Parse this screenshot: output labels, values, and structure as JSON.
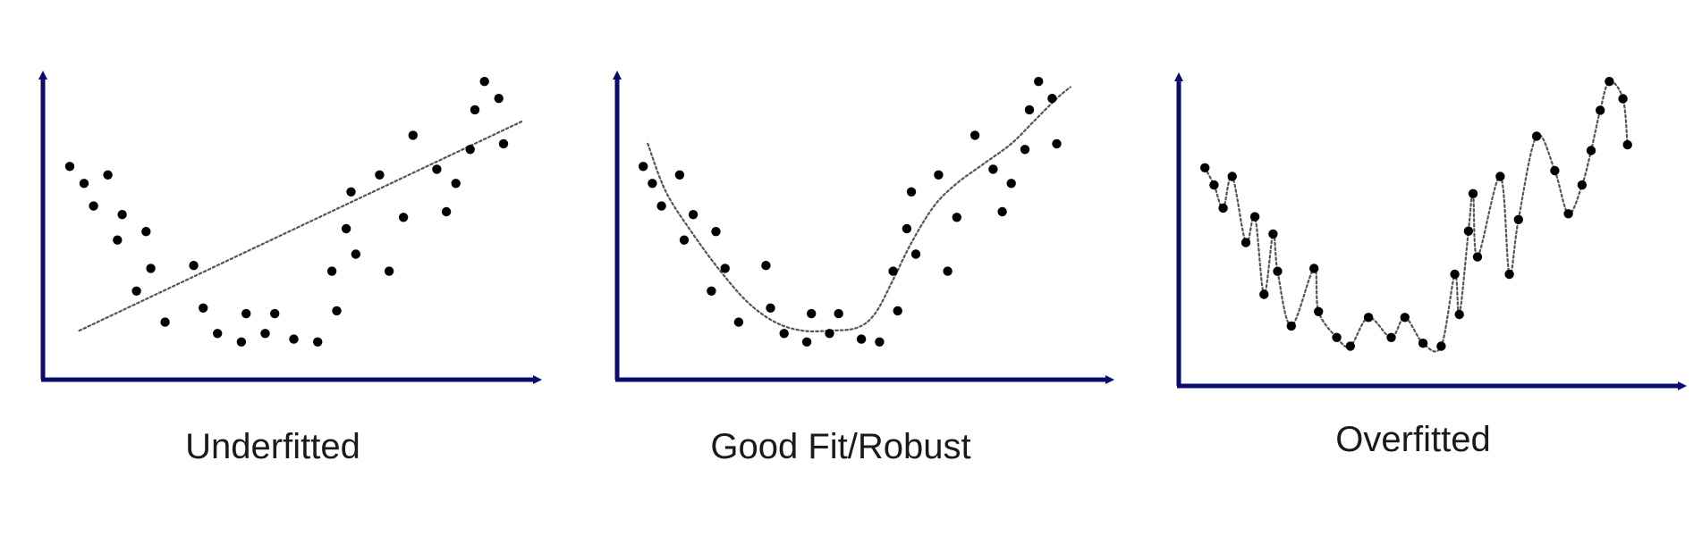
{
  "accent_colors": {
    "axis": "#0b0b6e",
    "points": "#000000",
    "fit_curve": "#555555"
  },
  "panels": [
    {
      "id": "underfitted",
      "caption": "Underfitted",
      "fit": "linear",
      "points": [
        [
          0.03,
          0.69
        ],
        [
          0.06,
          0.63
        ],
        [
          0.08,
          0.55
        ],
        [
          0.11,
          0.66
        ],
        [
          0.13,
          0.43
        ],
        [
          0.14,
          0.52
        ],
        [
          0.17,
          0.25
        ],
        [
          0.19,
          0.46
        ],
        [
          0.2,
          0.33
        ],
        [
          0.23,
          0.14
        ],
        [
          0.29,
          0.34
        ],
        [
          0.31,
          0.19
        ],
        [
          0.34,
          0.1
        ],
        [
          0.39,
          0.07
        ],
        [
          0.4,
          0.17
        ],
        [
          0.44,
          0.1
        ],
        [
          0.46,
          0.17
        ],
        [
          0.5,
          0.08
        ],
        [
          0.55,
          0.07
        ],
        [
          0.58,
          0.32
        ],
        [
          0.59,
          0.18
        ],
        [
          0.61,
          0.47
        ],
        [
          0.62,
          0.6
        ],
        [
          0.63,
          0.38
        ],
        [
          0.68,
          0.66
        ],
        [
          0.7,
          0.32
        ],
        [
          0.73,
          0.51
        ],
        [
          0.75,
          0.8
        ],
        [
          0.8,
          0.68
        ],
        [
          0.82,
          0.53
        ],
        [
          0.84,
          0.63
        ],
        [
          0.87,
          0.75
        ],
        [
          0.88,
          0.89
        ],
        [
          0.9,
          0.99
        ],
        [
          0.93,
          0.93
        ],
        [
          0.94,
          0.77
        ]
      ],
      "fit_line": [
        [
          0.05,
          0.11
        ],
        [
          0.98,
          0.85
        ]
      ]
    },
    {
      "id": "good-fit",
      "caption": "Good Fit/Robust",
      "fit": "smooth",
      "points": [
        [
          0.03,
          0.69
        ],
        [
          0.05,
          0.63
        ],
        [
          0.07,
          0.55
        ],
        [
          0.11,
          0.66
        ],
        [
          0.12,
          0.43
        ],
        [
          0.14,
          0.52
        ],
        [
          0.18,
          0.25
        ],
        [
          0.19,
          0.46
        ],
        [
          0.21,
          0.33
        ],
        [
          0.24,
          0.14
        ],
        [
          0.3,
          0.34
        ],
        [
          0.31,
          0.19
        ],
        [
          0.34,
          0.1
        ],
        [
          0.39,
          0.07
        ],
        [
          0.4,
          0.17
        ],
        [
          0.44,
          0.1
        ],
        [
          0.46,
          0.17
        ],
        [
          0.51,
          0.08
        ],
        [
          0.55,
          0.07
        ],
        [
          0.58,
          0.32
        ],
        [
          0.59,
          0.18
        ],
        [
          0.61,
          0.47
        ],
        [
          0.62,
          0.6
        ],
        [
          0.63,
          0.38
        ],
        [
          0.68,
          0.66
        ],
        [
          0.7,
          0.32
        ],
        [
          0.72,
          0.51
        ],
        [
          0.76,
          0.8
        ],
        [
          0.8,
          0.68
        ],
        [
          0.82,
          0.53
        ],
        [
          0.84,
          0.63
        ],
        [
          0.87,
          0.75
        ],
        [
          0.88,
          0.89
        ],
        [
          0.9,
          0.99
        ],
        [
          0.93,
          0.93
        ],
        [
          0.94,
          0.77
        ]
      ],
      "fit_curve": [
        [
          0.04,
          0.77
        ],
        [
          0.08,
          0.6
        ],
        [
          0.14,
          0.45
        ],
        [
          0.2,
          0.32
        ],
        [
          0.26,
          0.21
        ],
        [
          0.32,
          0.14
        ],
        [
          0.38,
          0.11
        ],
        [
          0.44,
          0.11
        ],
        [
          0.5,
          0.12
        ],
        [
          0.54,
          0.17
        ],
        [
          0.58,
          0.29
        ],
        [
          0.62,
          0.42
        ],
        [
          0.67,
          0.55
        ],
        [
          0.72,
          0.63
        ],
        [
          0.78,
          0.7
        ],
        [
          0.84,
          0.77
        ],
        [
          0.89,
          0.85
        ],
        [
          0.94,
          0.93
        ],
        [
          0.97,
          0.97
        ]
      ]
    },
    {
      "id": "overfitted",
      "caption": "Overfitted",
      "fit": "interpolating",
      "points": [
        [
          0.03,
          0.69
        ],
        [
          0.05,
          0.63
        ],
        [
          0.07,
          0.55
        ],
        [
          0.09,
          0.66
        ],
        [
          0.12,
          0.43
        ],
        [
          0.14,
          0.52
        ],
        [
          0.16,
          0.25
        ],
        [
          0.18,
          0.46
        ],
        [
          0.19,
          0.33
        ],
        [
          0.22,
          0.14
        ],
        [
          0.27,
          0.34
        ],
        [
          0.28,
          0.19
        ],
        [
          0.32,
          0.1
        ],
        [
          0.35,
          0.07
        ],
        [
          0.39,
          0.17
        ],
        [
          0.44,
          0.1
        ],
        [
          0.47,
          0.17
        ],
        [
          0.51,
          0.08
        ],
        [
          0.55,
          0.07
        ],
        [
          0.58,
          0.32
        ],
        [
          0.59,
          0.18
        ],
        [
          0.61,
          0.47
        ],
        [
          0.62,
          0.6
        ],
        [
          0.63,
          0.38
        ],
        [
          0.68,
          0.66
        ],
        [
          0.7,
          0.32
        ],
        [
          0.72,
          0.51
        ],
        [
          0.76,
          0.8
        ],
        [
          0.8,
          0.68
        ],
        [
          0.83,
          0.53
        ],
        [
          0.86,
          0.63
        ],
        [
          0.88,
          0.75
        ],
        [
          0.9,
          0.89
        ],
        [
          0.92,
          0.99
        ],
        [
          0.95,
          0.93
        ],
        [
          0.96,
          0.77
        ]
      ]
    }
  ]
}
